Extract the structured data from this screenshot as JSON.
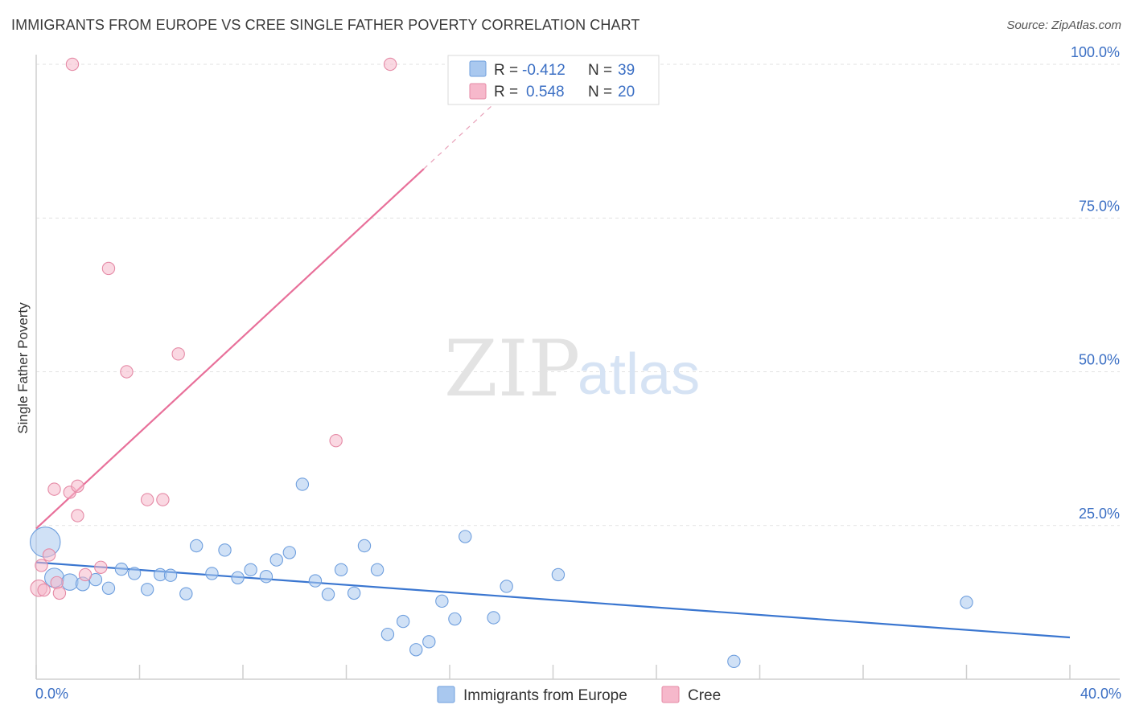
{
  "title": "IMMIGRANTS FROM EUROPE VS CREE SINGLE FATHER POVERTY CORRELATION CHART",
  "source": "Source: ZipAtlas.com",
  "watermark": {
    "zip": "ZIP",
    "atlas": "atlas"
  },
  "legend_top": [
    {
      "r_label": "R =",
      "r_value": "-0.412",
      "n_label": "N =",
      "n_value": "39",
      "color": "#a9c8ef"
    },
    {
      "r_label": "R =",
      "r_value": "0.548",
      "n_label": "N =",
      "n_value": "20",
      "color": "#f6b8cb"
    }
  ],
  "chart_data": {
    "type": "scatter",
    "title": "IMMIGRANTS FROM EUROPE VS CREE SINGLE FATHER POVERTY CORRELATION CHART",
    "xlabel": "",
    "ylabel": "Single Father Poverty",
    "xlim": [
      0,
      40
    ],
    "ylim": [
      0,
      100
    ],
    "x_tick_labels": [
      "0.0%",
      "40.0%"
    ],
    "y_tick_labels": [
      "25.0%",
      "50.0%",
      "75.0%",
      "100.0%"
    ],
    "y_ticks": [
      25,
      50,
      75,
      100
    ],
    "grid": true,
    "series": [
      {
        "name": "Immigrants from Europe",
        "color": "#a9c8ef",
        "stroke": "#6f9fde",
        "points": [
          [
            0.35,
            22.3,
            2.2
          ],
          [
            0.7,
            16.5,
            1.4
          ],
          [
            1.3,
            15.8,
            1.2
          ],
          [
            1.8,
            15.5,
            1.0
          ],
          [
            2.3,
            16.2,
            0.9
          ],
          [
            2.8,
            14.8,
            0.9
          ],
          [
            3.3,
            17.9,
            0.9
          ],
          [
            3.8,
            17.2,
            0.9
          ],
          [
            4.3,
            14.6,
            0.9
          ],
          [
            4.8,
            17.0,
            0.9
          ],
          [
            5.2,
            16.9,
            0.9
          ],
          [
            5.8,
            13.9,
            0.9
          ],
          [
            6.2,
            21.7,
            0.9
          ],
          [
            6.8,
            17.2,
            0.9
          ],
          [
            7.3,
            21.0,
            0.9
          ],
          [
            7.8,
            16.5,
            0.9
          ],
          [
            8.3,
            17.8,
            0.9
          ],
          [
            8.9,
            16.7,
            0.9
          ],
          [
            9.3,
            19.4,
            0.9
          ],
          [
            9.8,
            20.6,
            0.9
          ],
          [
            10.3,
            31.7,
            0.9
          ],
          [
            10.8,
            16.0,
            0.9
          ],
          [
            11.3,
            13.8,
            0.9
          ],
          [
            11.8,
            17.8,
            0.9
          ],
          [
            12.3,
            14.0,
            0.9
          ],
          [
            12.7,
            21.7,
            0.9
          ],
          [
            13.2,
            17.8,
            0.9
          ],
          [
            13.6,
            7.3,
            0.9
          ],
          [
            14.2,
            9.4,
            0.9
          ],
          [
            14.7,
            4.8,
            0.9
          ],
          [
            15.2,
            6.1,
            0.9
          ],
          [
            15.7,
            12.7,
            0.9
          ],
          [
            16.2,
            9.8,
            0.9
          ],
          [
            16.6,
            23.2,
            0.9
          ],
          [
            17.7,
            10.0,
            0.9
          ],
          [
            18.2,
            15.1,
            0.9
          ],
          [
            20.2,
            17.0,
            0.9
          ],
          [
            27.0,
            2.9,
            0.9
          ],
          [
            36.0,
            12.5,
            0.9
          ]
        ],
        "trend": {
          "x0": 0,
          "y0": 19.0,
          "x1": 40,
          "y1": 6.8
        }
      },
      {
        "name": "Cree",
        "color": "#f6b8cb",
        "stroke": "#e58aa6",
        "points": [
          [
            0.1,
            14.8,
            1.2
          ],
          [
            0.2,
            18.5,
            0.9
          ],
          [
            0.5,
            20.2,
            0.9
          ],
          [
            0.7,
            30.9,
            0.9
          ],
          [
            0.8,
            15.7,
            0.9
          ],
          [
            0.9,
            14.0,
            0.9
          ],
          [
            1.4,
            100.0,
            0.9
          ],
          [
            1.3,
            30.4,
            0.9
          ],
          [
            1.6,
            31.4,
            0.9
          ],
          [
            1.6,
            26.6,
            0.9
          ],
          [
            1.9,
            17.0,
            0.9
          ],
          [
            2.5,
            18.2,
            0.9
          ],
          [
            2.8,
            66.8,
            0.9
          ],
          [
            3.5,
            50.0,
            0.9
          ],
          [
            4.3,
            29.2,
            0.9
          ],
          [
            4.9,
            29.2,
            0.9
          ],
          [
            5.5,
            52.9,
            0.9
          ],
          [
            11.6,
            38.8,
            0.9
          ],
          [
            13.7,
            100.0,
            0.9
          ],
          [
            0.3,
            14.5,
            0.9
          ]
        ],
        "trend": {
          "x0": 0,
          "y0": 24.5,
          "x1": 15.0,
          "y1": 83.0,
          "dash_to_x": 18.0,
          "dash_to_y": 94.7
        }
      }
    ]
  }
}
